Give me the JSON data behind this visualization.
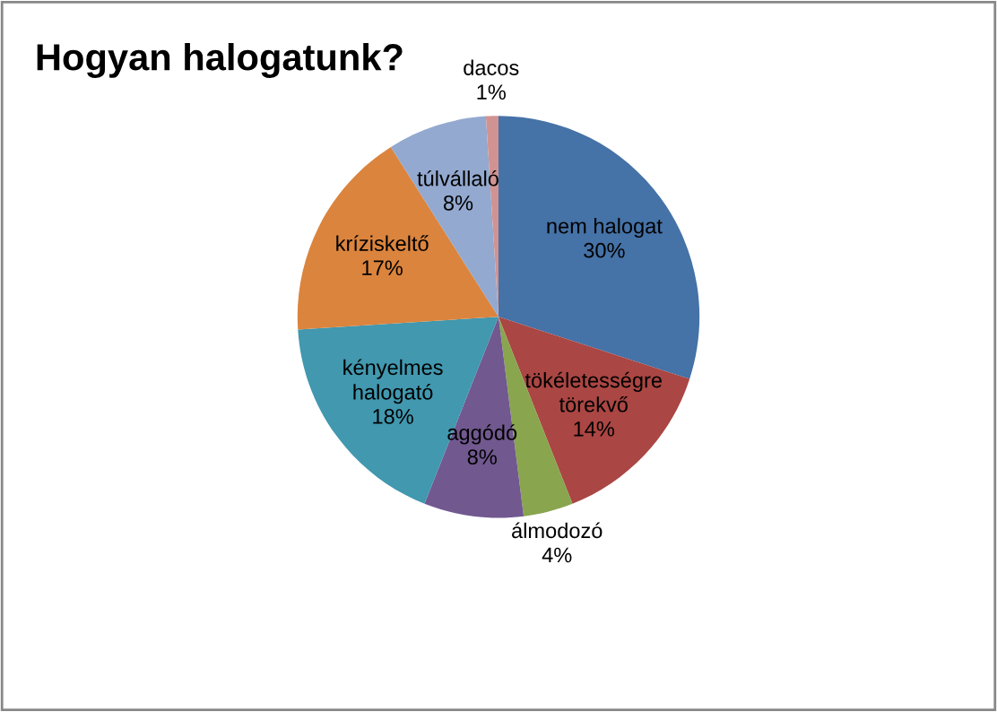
{
  "chart_data": {
    "type": "pie",
    "title": "Hogyan halogatunk?",
    "categories": [
      "nem halogat",
      "tökéletességre\ntörekvő",
      "álmodozó",
      "aggódó",
      "kényelmes\nhalogató",
      "kríziskeltő",
      "túlvállaló",
      "dacos"
    ],
    "values": [
      30,
      14,
      4,
      8,
      18,
      17,
      8,
      1
    ],
    "value_labels": [
      "30%",
      "14%",
      "4%",
      "8%",
      "18%",
      "17%",
      "8%",
      "1%"
    ],
    "colors": [
      "#4572a7",
      "#aa4643",
      "#89a54e",
      "#71588f",
      "#4198af",
      "#db843d",
      "#93a9cf",
      "#d19392"
    ],
    "legend": false
  }
}
